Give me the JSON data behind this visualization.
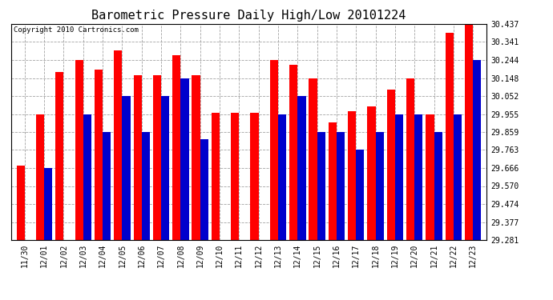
{
  "title": "Barometric Pressure Daily High/Low 20101224",
  "copyright": "Copyright 2010 Cartronics.com",
  "dates": [
    "11/30",
    "12/01",
    "12/02",
    "12/03",
    "12/04",
    "12/05",
    "12/06",
    "12/07",
    "12/08",
    "12/09",
    "12/10",
    "12/11",
    "12/12",
    "12/13",
    "12/14",
    "12/15",
    "12/16",
    "12/17",
    "12/18",
    "12/19",
    "12/20",
    "12/21",
    "12/22",
    "12/23"
  ],
  "highs": [
    29.68,
    29.955,
    30.18,
    30.244,
    30.195,
    30.295,
    30.165,
    30.165,
    30.27,
    30.165,
    29.96,
    29.96,
    29.96,
    30.244,
    30.22,
    30.148,
    29.91,
    29.97,
    29.995,
    30.085,
    30.148,
    29.955,
    30.39,
    30.437
  ],
  "lows": [
    29.281,
    29.666,
    29.281,
    29.955,
    29.859,
    30.052,
    29.859,
    30.052,
    30.148,
    29.82,
    29.281,
    29.281,
    29.281,
    29.955,
    30.052,
    29.859,
    29.859,
    29.763,
    29.859,
    29.955,
    29.955,
    29.859,
    29.955,
    30.244
  ],
  "bar_color_high": "#ff0000",
  "bar_color_low": "#0000cc",
  "bg_color": "#ffffff",
  "plot_bg_color": "#ffffff",
  "grid_color": "#999999",
  "yticks": [
    29.281,
    29.377,
    29.474,
    29.57,
    29.666,
    29.763,
    29.859,
    29.955,
    30.052,
    30.148,
    30.244,
    30.341,
    30.437
  ],
  "ymin": 29.281,
  "ymax": 30.437,
  "title_fontsize": 11,
  "tick_fontsize": 7,
  "copyright_fontsize": 6.5
}
